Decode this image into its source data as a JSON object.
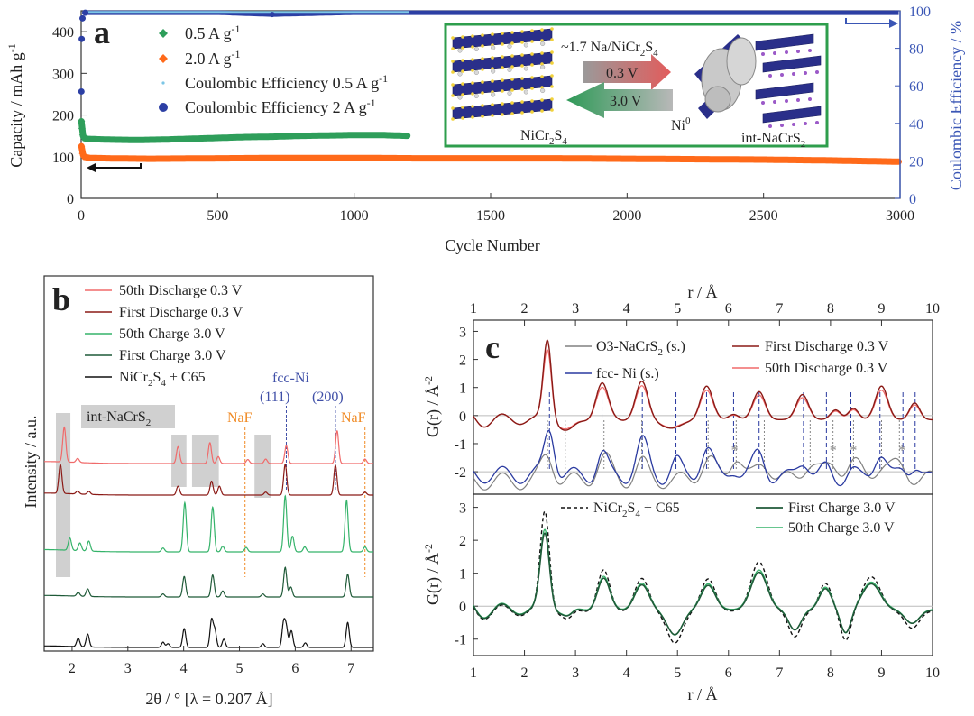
{
  "panel_labels": {
    "a": "a",
    "b": "b",
    "c": "c"
  },
  "colors": {
    "cap05": "#2e9e5a",
    "cap20": "#ff6a1a",
    "ce05": "#7cc6e6",
    "ce20": "#2c3fa4",
    "axis_right": "#3a56b5",
    "inset_border": "#2e9e4c",
    "naf": "#f08a24",
    "fcc": "#4050a8",
    "dis50": "#f06a6a",
    "dis1": "#8b1a16",
    "ch50": "#35b36a",
    "ch1": "#1f5a38",
    "pristine": "#111111",
    "o3": "#808080",
    "fccs": "#2a3aa0",
    "shade": "#d0d0d0"
  },
  "chart_data": [
    {
      "id": "a",
      "type": "scatter",
      "title": "",
      "xlabel": "Cycle Number",
      "ylabel": "Capacity / mAh g",
      "ylabel_sup": "-1",
      "y2label": "Coulombic Efficiency / %",
      "xlim": [
        0,
        3000
      ],
      "ylim": [
        0,
        450
      ],
      "y2lim": [
        0,
        100
      ],
      "xticks": [
        0,
        500,
        1000,
        1500,
        2000,
        2500,
        3000
      ],
      "yticks": [
        0,
        100,
        200,
        300,
        400
      ],
      "y2ticks": [
        0,
        20,
        40,
        60,
        80,
        100
      ],
      "legend_position": "top-left",
      "series": [
        {
          "name": "0.5 A g",
          "sup": "-1",
          "axis": "left",
          "color_key": "cap05",
          "marker": "diamond",
          "points": [
            [
              1,
              185
            ],
            [
              3,
              168
            ],
            [
              6,
              152
            ],
            [
              10,
              145
            ],
            [
              20,
              143
            ],
            [
              50,
              142
            ],
            [
              100,
              141
            ],
            [
              200,
              140
            ],
            [
              300,
              141
            ],
            [
              400,
              143
            ],
            [
              500,
              145
            ],
            [
              600,
              147
            ],
            [
              700,
              148
            ],
            [
              800,
              150
            ],
            [
              900,
              151
            ],
            [
              1000,
              152
            ],
            [
              1100,
              152
            ],
            [
              1200,
              150
            ]
          ]
        },
        {
          "name": "2.0 A g",
          "sup": "-1",
          "axis": "left",
          "color_key": "cap20",
          "marker": "diamond",
          "points": [
            [
              1,
              125
            ],
            [
              5,
              108
            ],
            [
              10,
              100
            ],
            [
              30,
              97
            ],
            [
              100,
              96
            ],
            [
              250,
              95
            ],
            [
              500,
              96
            ],
            [
              750,
              97
            ],
            [
              1000,
              97
            ],
            [
              1250,
              96
            ],
            [
              1500,
              96
            ],
            [
              1750,
              96
            ],
            [
              2000,
              95
            ],
            [
              2250,
              94
            ],
            [
              2500,
              93
            ],
            [
              2750,
              91
            ],
            [
              3000,
              88
            ]
          ]
        },
        {
          "name": "Coulombic Efficiency 0.5 A g",
          "sup": "-1",
          "axis": "right",
          "color_key": "ce05",
          "marker": "dot",
          "points": [
            [
              2,
              96
            ],
            [
              10,
              99
            ],
            [
              100,
              99.5
            ],
            [
              300,
              99.6
            ],
            [
              600,
              99.6
            ],
            [
              900,
              99.7
            ],
            [
              1200,
              99.7
            ]
          ]
        },
        {
          "name": "Coulombic Efficiency 2 A g",
          "sup": "-1",
          "axis": "right",
          "color_key": "ce20",
          "marker": "circle",
          "points": [
            [
              1,
              57
            ],
            [
              2,
              85
            ],
            [
              5,
              96
            ],
            [
              15,
              99
            ],
            [
              100,
              99
            ],
            [
              500,
              99
            ],
            [
              700,
              98
            ],
            [
              1000,
              99
            ],
            [
              1500,
              99
            ],
            [
              2000,
              99
            ],
            [
              2500,
              99
            ],
            [
              3000,
              99
            ]
          ]
        }
      ],
      "inset": {
        "top_label": "~1.7 Na/NiCr",
        "top_sub1": "2",
        "top_mid": "S",
        "top_sub2": "4",
        "arrow_right_label": "0.3 V",
        "arrow_left_label": "3.0 V",
        "left_name": "NiCr",
        "left_sub1": "2",
        "left_mid": "S",
        "left_sub2": "4",
        "ni_label": "Ni",
        "ni_sup": "0",
        "right_name": "int-NaCrS",
        "right_sub": "2"
      }
    },
    {
      "id": "b",
      "type": "line",
      "title": "",
      "xlabel": "2θ / ° [λ = 0.207 Å]",
      "ylabel": "Intensity / a.u.",
      "xlim": [
        1.5,
        7.4
      ],
      "xticks": [
        2,
        3,
        4,
        5,
        6,
        7
      ],
      "legend_position": "top-left",
      "series": [
        {
          "name": "50th Discharge 0.3 V",
          "color_key": "dis50",
          "peaks": [
            [
              1.86,
              70
            ],
            [
              2.1,
              8
            ],
            [
              3.9,
              34
            ],
            [
              4.47,
              42
            ],
            [
              4.62,
              14
            ],
            [
              5.15,
              8
            ],
            [
              5.47,
              9
            ],
            [
              5.84,
              36
            ],
            [
              6.75,
              66
            ],
            [
              7.25,
              9
            ]
          ]
        },
        {
          "name": "First Discharge 0.3 V",
          "color_key": "dis1",
          "peaks": [
            [
              1.79,
              58
            ],
            [
              2.1,
              6
            ],
            [
              2.3,
              6
            ],
            [
              3.9,
              18
            ],
            [
              4.5,
              28
            ],
            [
              4.64,
              18
            ],
            [
              5.47,
              6
            ],
            [
              5.82,
              62
            ],
            [
              6.72,
              60
            ],
            [
              7.25,
              6
            ]
          ]
        },
        {
          "name": "50th Charge 3.0 V",
          "color_key": "ch50",
          "peaks": [
            [
              1.96,
              22
            ],
            [
              2.14,
              14
            ],
            [
              2.3,
              18
            ],
            [
              3.63,
              7
            ],
            [
              4.02,
              88
            ],
            [
              4.52,
              80
            ],
            [
              4.7,
              10
            ],
            [
              5.12,
              8
            ],
            [
              5.82,
              100
            ],
            [
              5.95,
              28
            ],
            [
              6.17,
              9
            ],
            [
              6.92,
              92
            ],
            [
              7.25,
              9
            ]
          ]
        },
        {
          "name": "First Charge 3.0 V",
          "color_key": "ch1",
          "peaks": [
            [
              2.11,
              10
            ],
            [
              2.28,
              20
            ],
            [
              3.63,
              8
            ],
            [
              4.01,
              54
            ],
            [
              4.52,
              58
            ],
            [
              4.7,
              16
            ],
            [
              5.42,
              8
            ],
            [
              5.82,
              78
            ],
            [
              5.92,
              26
            ],
            [
              6.94,
              60
            ]
          ]
        },
        {
          "name": "NiCr",
          "name_sub1": "2",
          "name_mid": "S",
          "name_sub2": "4",
          "name_tail": " + C65",
          "color_key": "pristine",
          "peaks": [
            [
              2.11,
              22
            ],
            [
              2.28,
              34
            ],
            [
              3.63,
              14
            ],
            [
              3.72,
              10
            ],
            [
              4.01,
              50
            ],
            [
              4.5,
              72
            ],
            [
              4.56,
              44
            ],
            [
              4.72,
              22
            ],
            [
              5.42,
              10
            ],
            [
              5.79,
              62
            ],
            [
              5.84,
              50
            ],
            [
              5.93,
              44
            ],
            [
              6.18,
              12
            ],
            [
              6.94,
              66
            ]
          ]
        }
      ],
      "shaded_regions": [
        [
          1.71,
          1.97
        ],
        [
          3.78,
          4.05
        ],
        [
          4.15,
          4.63
        ],
        [
          5.27,
          5.57
        ]
      ],
      "annotations": {
        "int_label": "int-NaCrS",
        "int_sub": "2",
        "naf1": "NaF",
        "naf2": "NaF",
        "naf_positions": [
          5.1,
          7.25
        ],
        "fcc": "fcc-Ni",
        "fcc111": "(111)",
        "fcc200": "(200)",
        "fcc_positions": [
          5.84,
          6.72
        ]
      }
    },
    {
      "id": "c",
      "type": "line",
      "title": "",
      "xlabel": "r / Å",
      "xlabel_top": "r / Å",
      "ylabel": "G(r) / Å",
      "ylabel_sup": "-2",
      "xlim": [
        1,
        10
      ],
      "xticks": [
        1,
        2,
        3,
        4,
        5,
        6,
        7,
        8,
        9,
        10
      ],
      "upper": {
        "ylim": [
          -2.8,
          3.4
        ],
        "yticks": [
          -2,
          -1,
          0,
          1,
          2,
          3
        ],
        "legend": [
          {
            "name": "O3-NaCrS",
            "sub": "2",
            "tail": " (s.)",
            "color_key": "o3"
          },
          {
            "name": "First Discharge 0.3 V",
            "color_key": "dis1"
          },
          {
            "name": "fcc- Ni (s.)",
            "color_key": "fccs"
          },
          {
            "name": "50th Discharge 0.3 V",
            "color_key": "dis50"
          }
        ],
        "fcc_lines": [
          2.49,
          3.52,
          4.31,
          4.97,
          5.57,
          6.1,
          6.6,
          7.47,
          7.92,
          8.4,
          8.97,
          9.42,
          9.66
        ],
        "o3_lines": [
          2.45,
          2.8,
          3.56,
          4.3,
          5.6,
          6.15,
          6.7,
          7.6,
          8.05,
          8.45,
          9.0,
          9.35
        ],
        "asterisk_positions": [
          6.12,
          8.05,
          8.45,
          9.4
        ],
        "asterisk_label": "*"
      },
      "lower": {
        "ylim": [
          -1.5,
          3.4
        ],
        "yticks": [
          -1,
          0,
          1,
          2,
          3
        ],
        "legend": [
          {
            "name": "NiCr",
            "sub1": "2",
            "mid": "S",
            "sub2": "4",
            "tail": " + C65",
            "color_key": "pristine"
          },
          {
            "name": "First Charge 3.0 V",
            "color_key": "ch1"
          },
          {
            "name": "50th Charge 3.0 V",
            "color_key": "ch50"
          }
        ]
      }
    }
  ]
}
